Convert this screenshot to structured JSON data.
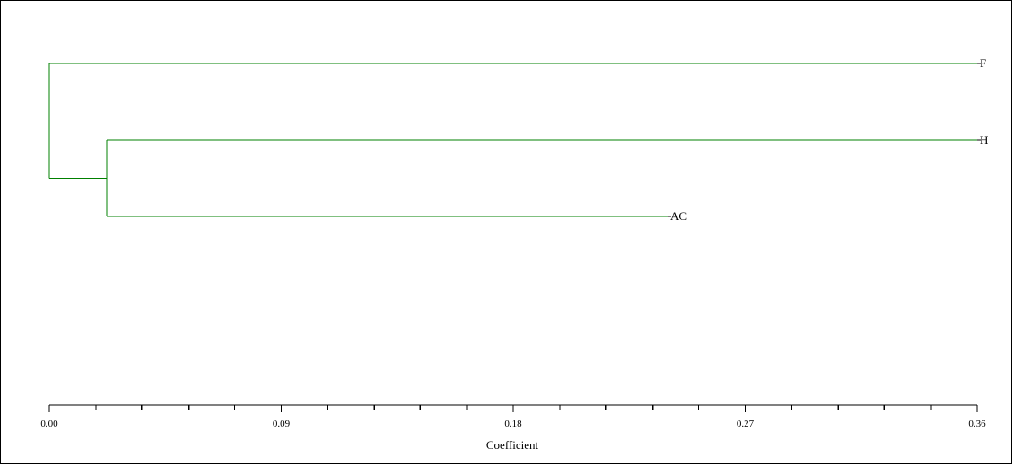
{
  "chart_data": {
    "type": "dendrogram",
    "xlabel": "Coefficient",
    "xlim": [
      0.0,
      0.36
    ],
    "ticks": [
      "0.00",
      "0.09",
      "0.18",
      "0.27",
      "0.36"
    ],
    "tick_values": [
      0.0,
      0.09,
      0.18,
      0.27,
      0.36
    ],
    "minor_tick_step": 0.018,
    "leaves": [
      {
        "name": "F",
        "height": 0.36
      },
      {
        "name": "H",
        "height": 0.36
      },
      {
        "name": "AC",
        "height": 0.24
      }
    ],
    "merges": [
      {
        "children": [
          "H",
          "AC"
        ],
        "height": 0.0225
      },
      {
        "children": [
          "F",
          "H+AC"
        ],
        "height": 0.0
      }
    ],
    "line_color": "#008000",
    "axis_color": "#000000"
  }
}
